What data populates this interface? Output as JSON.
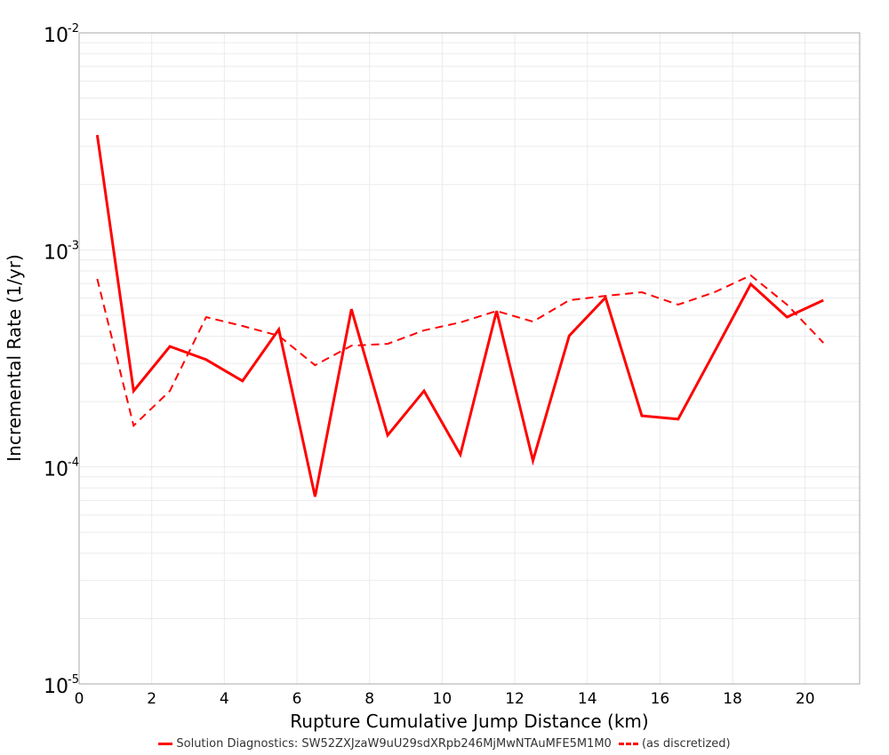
{
  "chart_data": {
    "type": "line",
    "title": "",
    "xlabel": "Rupture Cumulative Jump Distance (km)",
    "ylabel": "Incremental Rate (1/yr)",
    "xlim": [
      0,
      21.5
    ],
    "ylim": [
      1e-05,
      0.01
    ],
    "yscale": "log",
    "grid": true,
    "legend_position": "bottom",
    "x_ticks": [
      0,
      2,
      4,
      6,
      8,
      10,
      12,
      14,
      16,
      18,
      20
    ],
    "y_ticks": [
      {
        "value": 0.01,
        "base": "10",
        "exp": "-2"
      },
      {
        "value": 0.001,
        "base": "10",
        "exp": "-3"
      },
      {
        "value": 0.0001,
        "base": "10",
        "exp": "-4"
      },
      {
        "value": 1e-05,
        "base": "10",
        "exp": "-5"
      }
    ],
    "x": [
      0.5,
      1.5,
      2.5,
      3.5,
      4.5,
      5.5,
      6.5,
      7.5,
      8.5,
      9.5,
      10.5,
      11.5,
      12.5,
      13.5,
      14.5,
      15.5,
      16.5,
      17.5,
      18.5,
      19.5,
      20.5
    ],
    "series": [
      {
        "name": "Solution Diagnostics: SW52ZXJzaW9uU29sdXRpb246MjMwNTAuMFE5M1M0",
        "color": "#ff0000",
        "style": "solid",
        "width": 3,
        "values": [
          0.00338,
          0.000224,
          0.000359,
          0.000312,
          0.000249,
          0.00043,
          7.3e-05,
          0.000533,
          0.00014,
          0.000224,
          0.000114,
          0.000523,
          0.000107,
          0.000402,
          0.000603,
          0.000172,
          0.000166,
          0.000339,
          0.000695,
          0.00049,
          0.000586
        ]
      },
      {
        "name": "(as discretized)",
        "color": "#ff0000",
        "style": "dashed",
        "width": 2,
        "values": [
          0.000735,
          0.000155,
          0.000224,
          0.00049,
          0.000446,
          0.000402,
          0.000294,
          0.000362,
          0.000369,
          0.000426,
          0.000463,
          0.000523,
          0.000467,
          0.000586,
          0.000614,
          0.000638,
          0.000559,
          0.000638,
          0.000763,
          0.000559,
          0.000373
        ]
      }
    ]
  },
  "legend": {
    "items": [
      {
        "label": "Solution Diagnostics: SW52ZXJzaW9uU29sdXRpb246MjMwNTAuMFE5M1M0",
        "style": "solid"
      },
      {
        "label": "(as discretized)",
        "style": "dashed"
      }
    ]
  }
}
